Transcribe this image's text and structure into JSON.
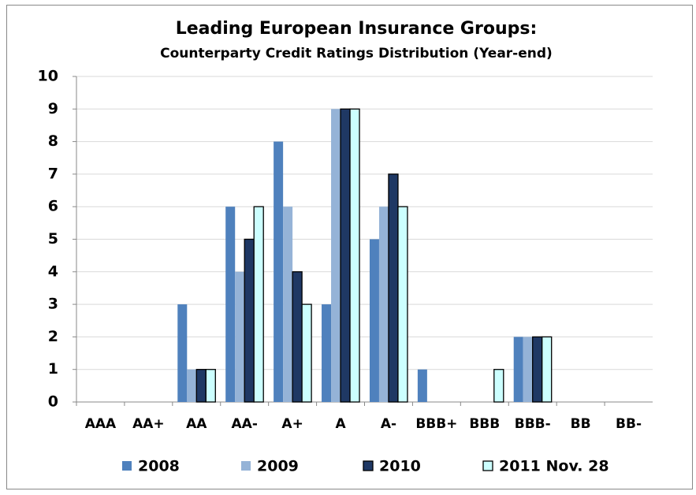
{
  "chart_data": {
    "type": "bar",
    "title": "Leading European Insurance Groups:",
    "subtitle": "Counterparty Credit Ratings Distribution (Year-end)",
    "categories": [
      "AAA",
      "AA+",
      "AA",
      "AA-",
      "A+",
      "A",
      "A-",
      "BBB+",
      "BBB",
      "BBB-",
      "BB",
      "BB-"
    ],
    "series": [
      {
        "name": "2008",
        "color": "#4f81bd",
        "values": [
          0,
          0,
          3,
          6,
          8,
          3,
          5,
          1,
          0,
          2,
          0,
          0
        ]
      },
      {
        "name": "2009",
        "color": "#95b3d7",
        "values": [
          0,
          0,
          1,
          4,
          6,
          9,
          6,
          0,
          0,
          2,
          0,
          0
        ]
      },
      {
        "name": "2010",
        "color": "#1f3864",
        "values": [
          0,
          0,
          1,
          5,
          4,
          9,
          7,
          0,
          0,
          2,
          0,
          0
        ]
      },
      {
        "name": "2011 Nov. 28",
        "color": "#ccffff",
        "values": [
          0,
          0,
          1,
          6,
          3,
          9,
          6,
          0,
          1,
          2,
          0,
          0
        ]
      }
    ],
    "ylim": [
      0,
      10
    ],
    "yticks": [
      0,
      1,
      2,
      3,
      4,
      5,
      6,
      7,
      8,
      9,
      10
    ],
    "grid": true,
    "legend": "bottom"
  }
}
